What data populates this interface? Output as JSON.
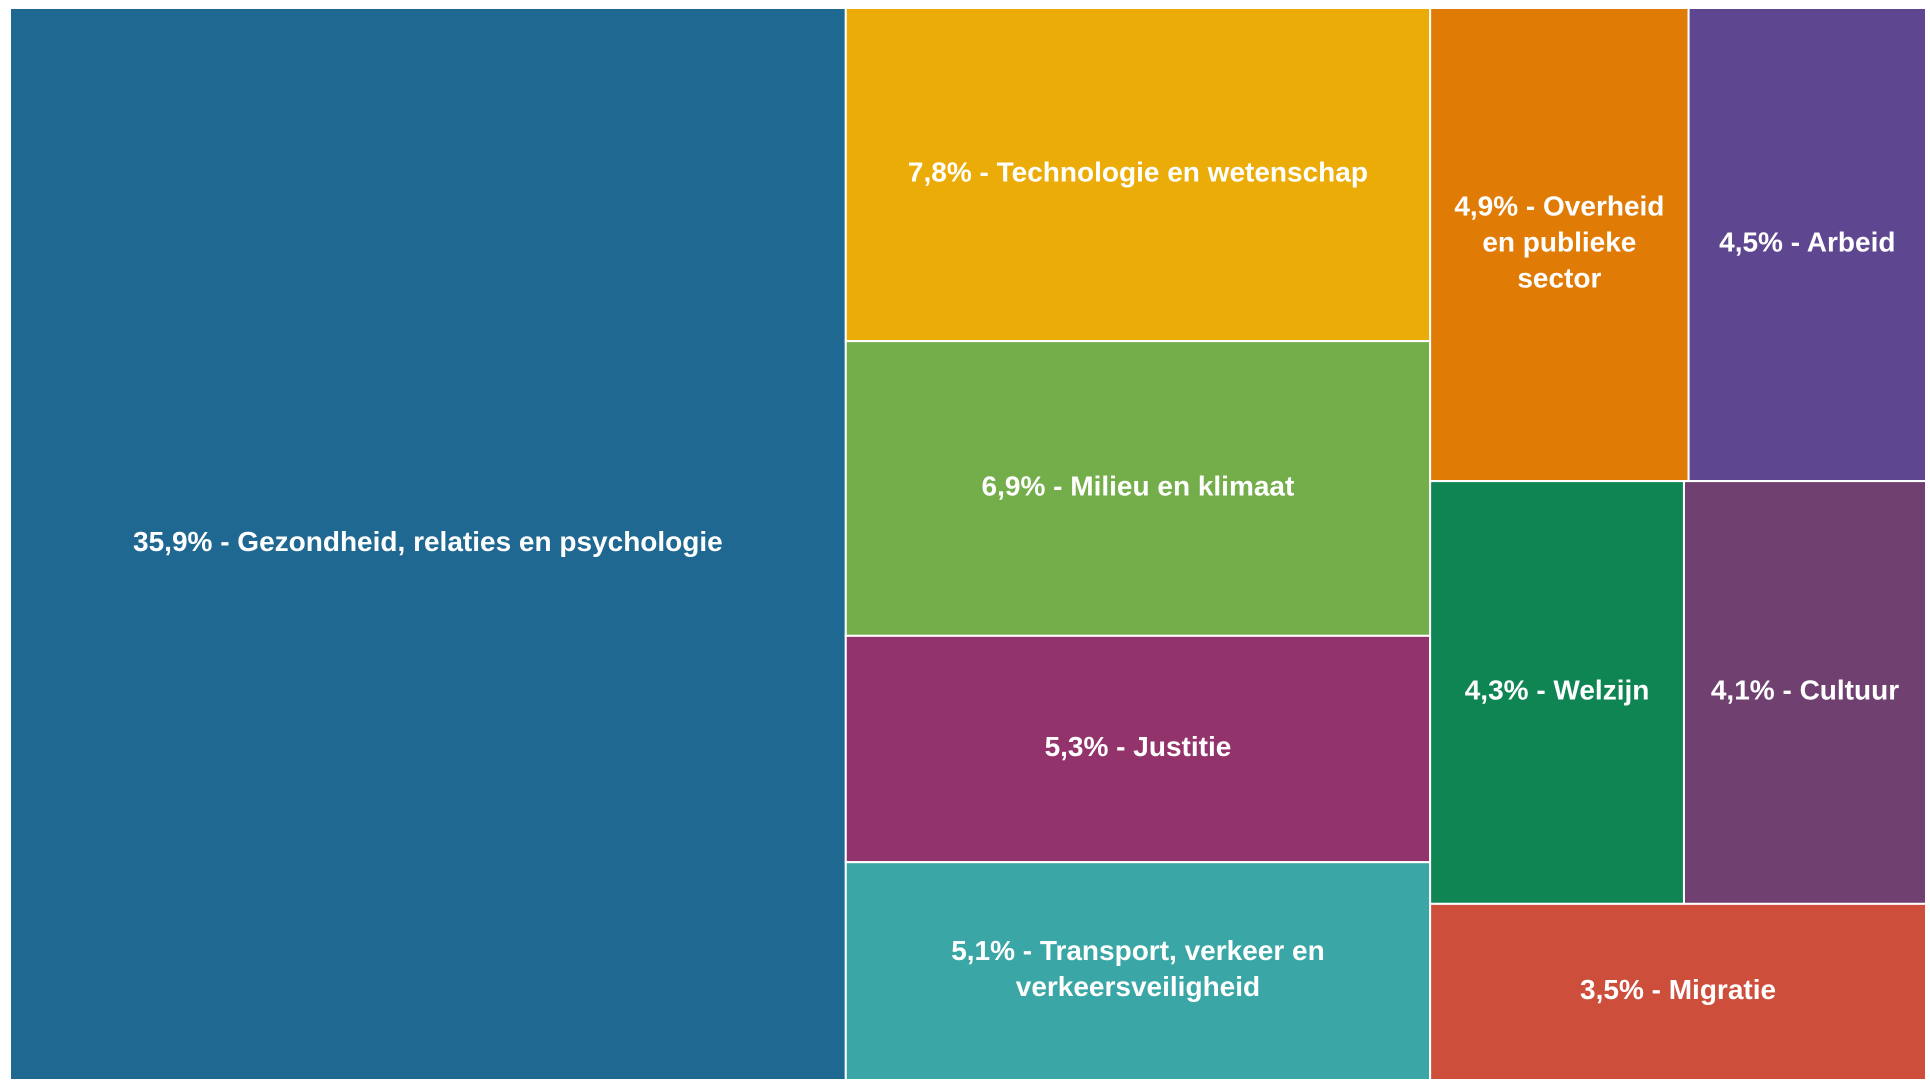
{
  "chart_data": {
    "type": "treemap",
    "values": [
      35.9,
      7.8,
      6.9,
      5.3,
      5.1,
      4.9,
      4.5,
      4.3,
      4.1,
      3.5
    ],
    "value_labels": [
      "35,9% - Gezondheid, relaties en psychologie",
      "7,8% - Technologie en wetenschap",
      "6,9% - Milieu en klimaat",
      "5,3% - Justitie",
      "5,1% - Transport, verkeer en verkeersveiligheid",
      "4,9% - Overheid en publieke sector",
      "4,5% - Arbeid",
      "4,3% - Welzijn",
      "4,1% - Cultuur",
      "3,5% - Migratie"
    ],
    "colors": [
      "#1f6892",
      "#ebac07",
      "#74ae4b",
      "#92336b",
      "#3aa6a6",
      "#e07b06",
      "#5f4690",
      "#0f8554",
      "#6f4070",
      "#cc4e3b"
    ]
  }
}
